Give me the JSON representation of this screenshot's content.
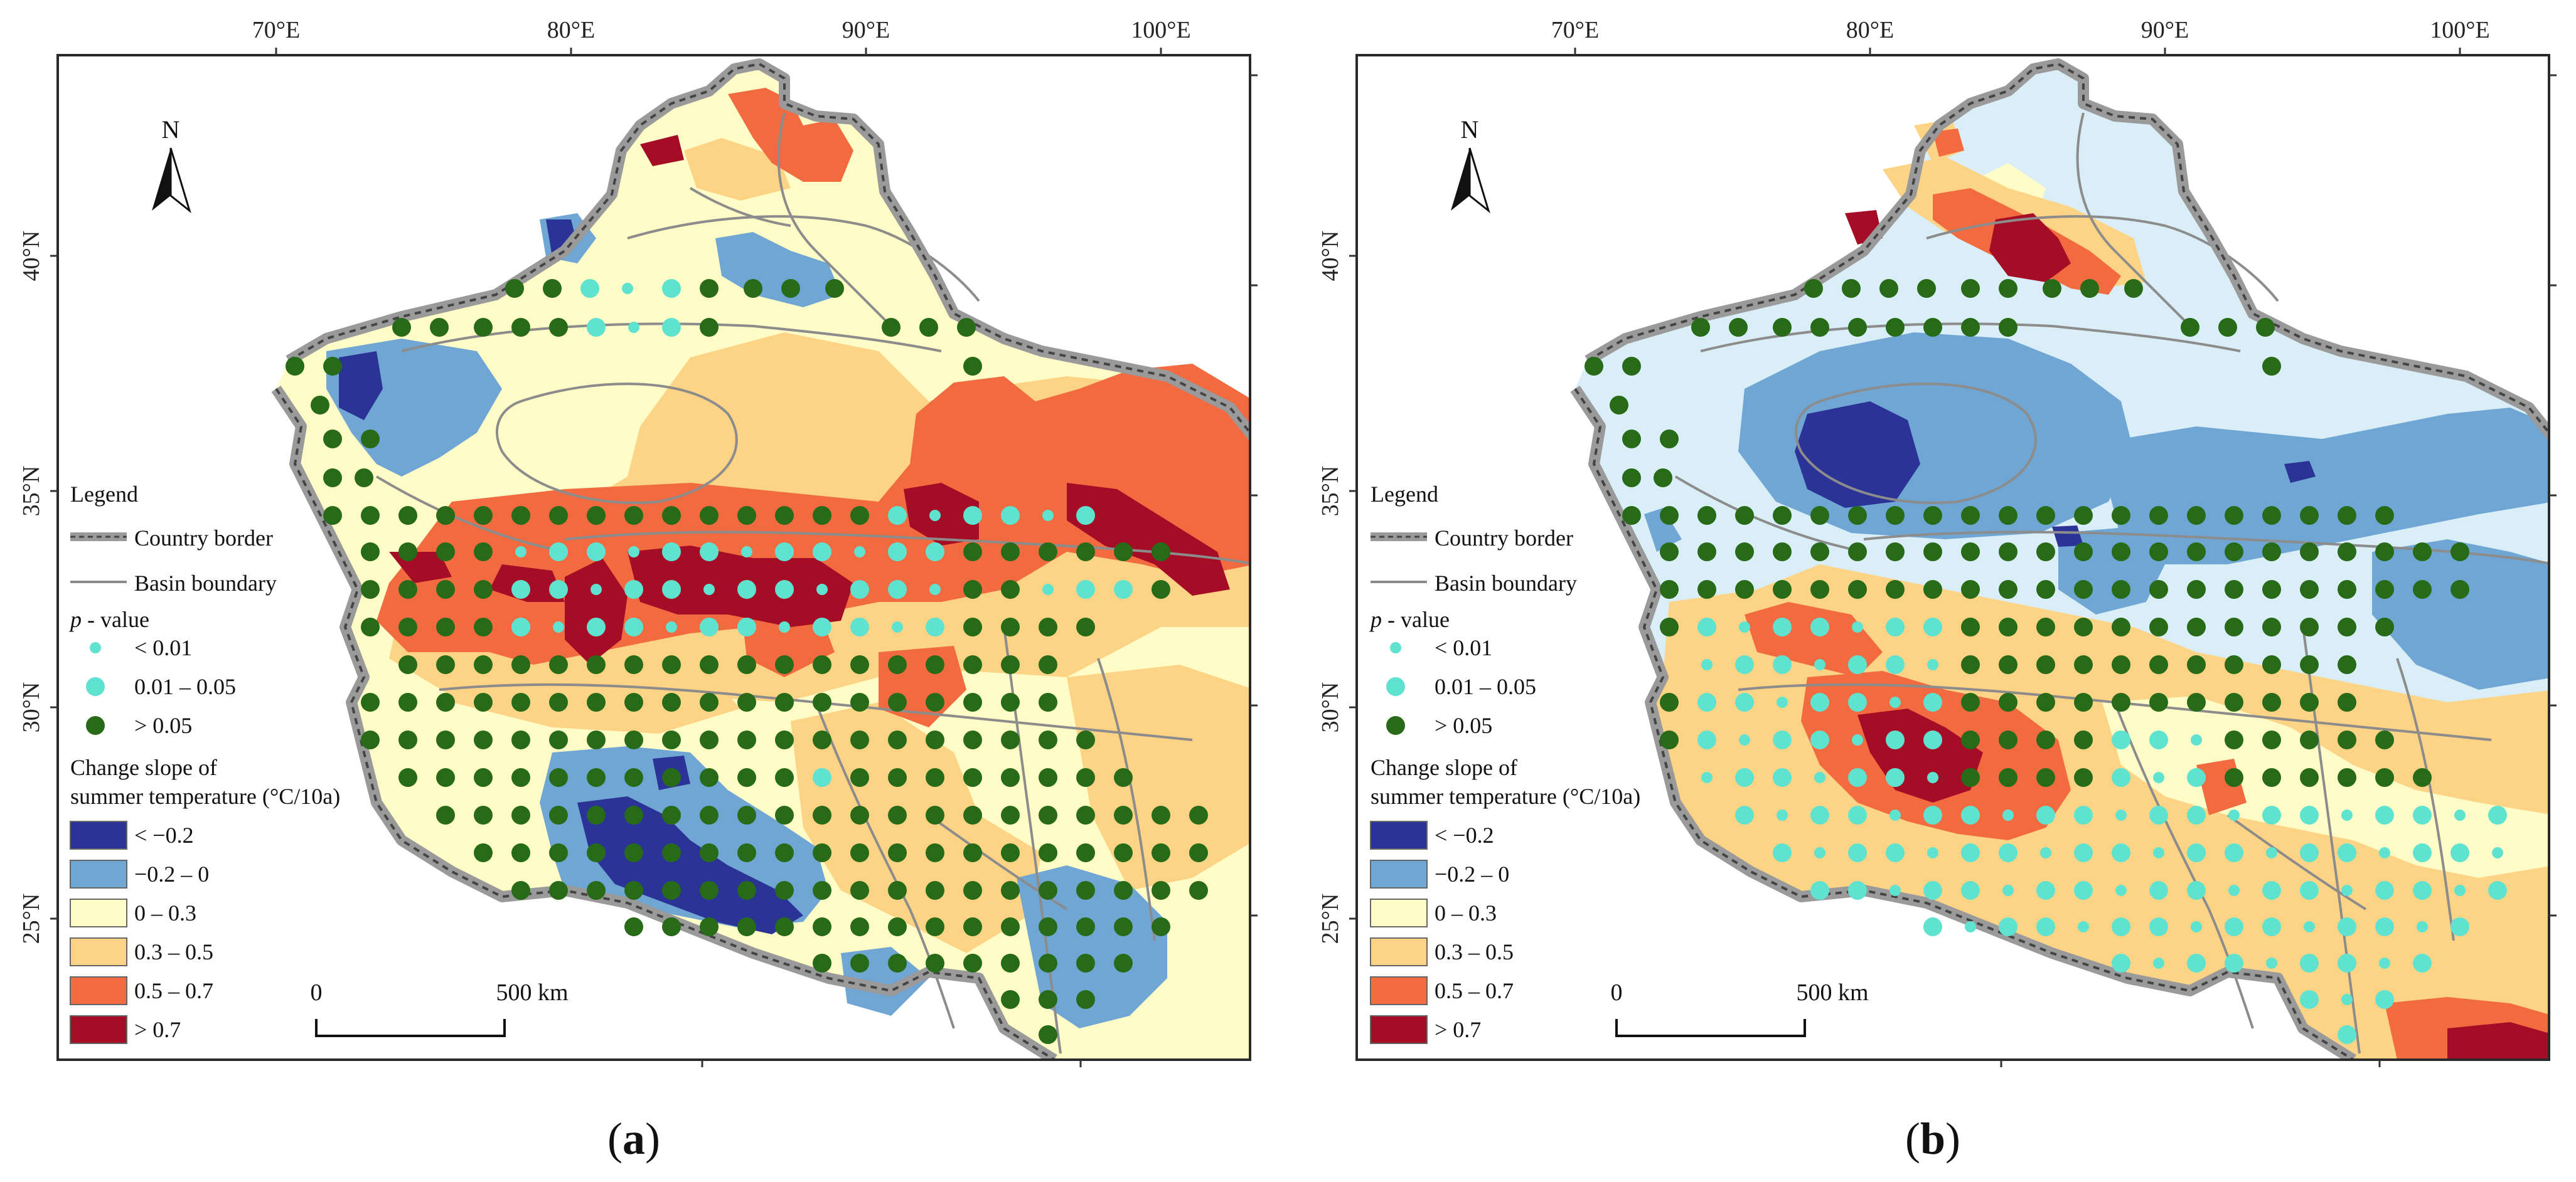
{
  "figure": {
    "lon_labels": [
      "70°E",
      "80°E",
      "90°E",
      "100°E"
    ],
    "lat_labels": [
      "40°N",
      "35°N",
      "30°N",
      "25°N"
    ]
  },
  "legend": {
    "title": "Legend",
    "country_border": "Country border",
    "basin_boundary": "Basin boundary",
    "p_label_italic": "p",
    "p_label_rest": " - value",
    "p_classes": [
      {
        "label": "< 0.01",
        "color": "#5fe3d0"
      },
      {
        "label": "0.01 – 0.05",
        "color": "#5fe3d0"
      },
      {
        "label": "> 0.05",
        "color": "#276b19"
      }
    ],
    "slope_title_line1": "Change slope of",
    "slope_title_line2": "summer temperature (°C/10a)",
    "slope_classes": [
      {
        "label": "< −0.2",
        "color": "#2b3396"
      },
      {
        "label": "−0.2 – 0",
        "color": "#6fa6d3"
      },
      {
        "label": "0 – 0.3",
        "color": "#fffcc8"
      },
      {
        "label": "0.3 – 0.5",
        "color": "#fdd486"
      },
      {
        "label": "0.5 – 0.7",
        "color": "#f26a40"
      },
      {
        "label": "> 0.7",
        "color": "#a50d26"
      }
    ]
  },
  "scalebar": {
    "zero": "0",
    "end": "500 km"
  },
  "north": "N",
  "panels": [
    {
      "letter": "a",
      "open": "(",
      "close": ")"
    },
    {
      "letter": "b",
      "open": "(",
      "close": ")"
    }
  ],
  "colors": {
    "frame": "#2a2a2a",
    "border_gray": "#9a9a9a",
    "basin_line": "#8c8c8c",
    "light_blue_b": "#daeef7"
  }
}
